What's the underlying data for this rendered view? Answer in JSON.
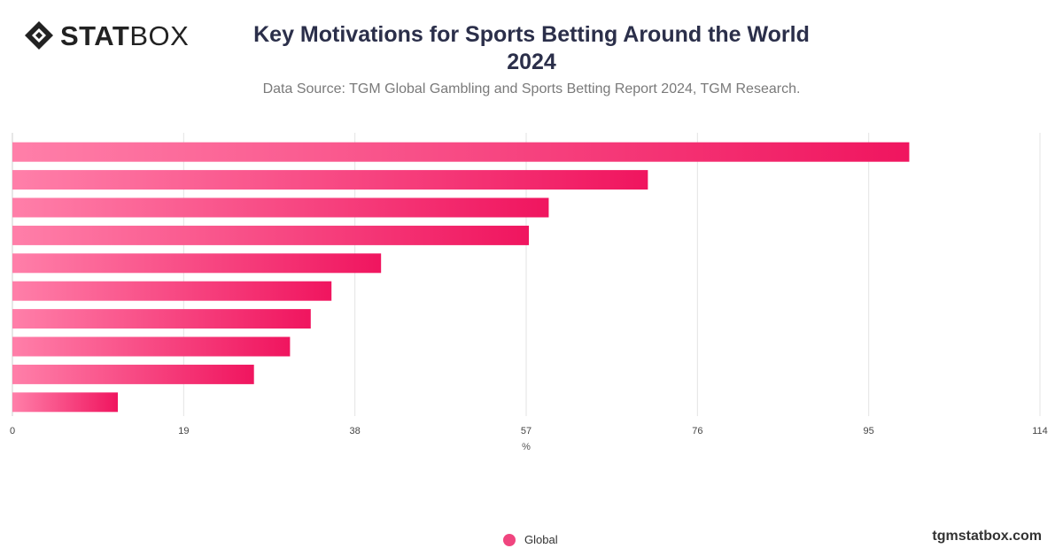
{
  "header": {
    "logo_bold": "STAT",
    "logo_light": "BOX",
    "title_line1": "Key Motivations for Sports Betting Around the World",
    "title_line2": "2024",
    "subtitle": "Data Source: TGM Global Gambling and Sports Betting Report 2024, TGM Research."
  },
  "footer": {
    "site": "tgmstatbox.com"
  },
  "colors": {
    "bar_start": "#ff7fa9",
    "bar_end": "#f0155f",
    "legend": "#f0457f",
    "grid": "#e3e3e3"
  },
  "chart_data": {
    "type": "bar",
    "orientation": "horizontal",
    "title": "Key Motivations for Sports Betting Around the World 2024",
    "xlabel": "%",
    "xlim": [
      0,
      114
    ],
    "ticks": [
      "0",
      "19",
      "38",
      "57",
      "76",
      "95",
      "114"
    ],
    "tick_values": [
      0,
      19,
      38,
      57,
      76,
      95,
      114
    ],
    "grid": true,
    "legend_position": "bottom-center",
    "series": [
      {
        "name": "Global",
        "values": [
          99.5,
          70.5,
          59.5,
          57.3,
          40.9,
          35.4,
          33.1,
          30.8,
          26.8,
          11.7
        ]
      }
    ]
  }
}
